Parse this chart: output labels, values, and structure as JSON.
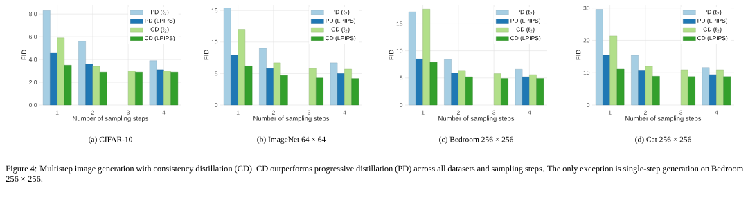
{
  "chart_data": [
    {
      "type": "bar",
      "title": "(a) CIFAR-10",
      "xlabel": "Number of sampling steps",
      "ylabel": "FID",
      "categories": [
        "1",
        "2",
        "3",
        "4"
      ],
      "series": [
        {
          "name": "PD (ℓ$_{2}$)",
          "color": "#a6cee3",
          "values": [
            8.3,
            5.6,
            null,
            3.9
          ]
        },
        {
          "name": "PD (LPIPS)",
          "color": "#1f78b4",
          "values": [
            4.6,
            3.6,
            null,
            3.1
          ]
        },
        {
          "name": "CD (ℓ$_{2}$)",
          "color": "#b2df8a",
          "values": [
            5.9,
            3.4,
            3.0,
            3.0
          ]
        },
        {
          "name": "CD (LPIPS)",
          "color": "#33a02c",
          "values": [
            3.5,
            2.9,
            2.9,
            2.9
          ]
        }
      ],
      "ylim": [
        0,
        8.8
      ],
      "yticks": [
        {
          "value": 0,
          "label": "0.0"
        },
        {
          "value": 2,
          "label": "2.0"
        },
        {
          "value": 4,
          "label": "4.0"
        },
        {
          "value": 6,
          "label": "6.0"
        },
        {
          "value": 8,
          "label": "8.0"
        }
      ],
      "grid": true,
      "legend": "top right",
      "annotations": [
        "Figure 4: Multistep image generation with consistency distillation (CD). CD outperforms progressive distillation (PD) across all datasets and sampling steps. The only exception is single-step generation on Bedroom 256 × 256."
      ]
    },
    {
      "type": "bar",
      "title": "(b) ImageNet 64 × 64",
      "xlabel": "Number of sampling steps",
      "ylabel": "FID",
      "categories": [
        "1",
        "2",
        "3",
        "4"
      ],
      "series": [
        {
          "name": "PD (ℓ$_{2}$)",
          "color": "#a6cee3",
          "values": [
            15.4,
            9.0,
            null,
            6.7
          ]
        },
        {
          "name": "PD (LPIPS)",
          "color": "#1f78b4",
          "values": [
            7.9,
            5.8,
            null,
            5.0
          ]
        },
        {
          "name": "CD (ℓ$_{2}$)",
          "color": "#b2df8a",
          "values": [
            12.0,
            6.7,
            5.8,
            5.7
          ]
        },
        {
          "name": "CD (LPIPS)",
          "color": "#33a02c",
          "values": [
            6.2,
            4.7,
            4.3,
            4.2
          ]
        }
      ],
      "ylim": [
        0,
        15.9
      ],
      "yticks": [
        0,
        5,
        10,
        15
      ],
      "grid": true,
      "legend": "top right"
    },
    {
      "type": "bar",
      "title": "(c) Bedroom 256 × 256",
      "xlabel": "Number of sampling steps",
      "ylabel": "FID",
      "categories": [
        "1",
        "2",
        "3",
        "4"
      ],
      "series": [
        {
          "name": "PD (ℓ$_{2}$)",
          "color": "#a6cee3",
          "values": [
            17.2,
            8.4,
            null,
            6.6
          ]
        },
        {
          "name": "PD (LPIPS)",
          "color": "#1f78b4",
          "values": [
            8.5,
            5.9,
            null,
            5.2
          ]
        },
        {
          "name": "CD (ℓ$_{2}$)",
          "color": "#b2df8a",
          "values": [
            17.7,
            6.4,
            5.8,
            5.6
          ]
        },
        {
          "name": "CD (LPIPS)",
          "color": "#33a02c",
          "values": [
            7.9,
            5.2,
            4.9,
            4.9
          ]
        }
      ],
      "ylim": [
        0,
        18.5
      ],
      "yticks": [
        0,
        5,
        10,
        15
      ],
      "grid": true,
      "legend": "top right"
    },
    {
      "type": "bar",
      "title": "(d) Cat 256 × 256",
      "xlabel": "Number of sampling steps",
      "ylabel": "FID",
      "categories": [
        "1",
        "2",
        "3",
        "4"
      ],
      "series": [
        {
          "name": "PD (ℓ$_{2}$)",
          "color": "#a6cee3",
          "values": [
            29.6,
            15.4,
            null,
            11.6
          ]
        },
        {
          "name": "PD (LPIPS)",
          "color": "#1f78b4",
          "values": [
            15.4,
            10.8,
            null,
            9.4
          ]
        },
        {
          "name": "CD (ℓ$_{2}$)",
          "color": "#b2df8a",
          "values": [
            21.4,
            12.0,
            10.9,
            10.9
          ]
        },
        {
          "name": "CD (LPIPS)",
          "color": "#33a02c",
          "values": [
            11.1,
            8.9,
            8.8,
            8.8
          ]
        }
      ],
      "ylim": [
        0,
        31
      ],
      "yticks": [
        0,
        10,
        20,
        30
      ],
      "grid": true,
      "legend": "top right"
    }
  ]
}
